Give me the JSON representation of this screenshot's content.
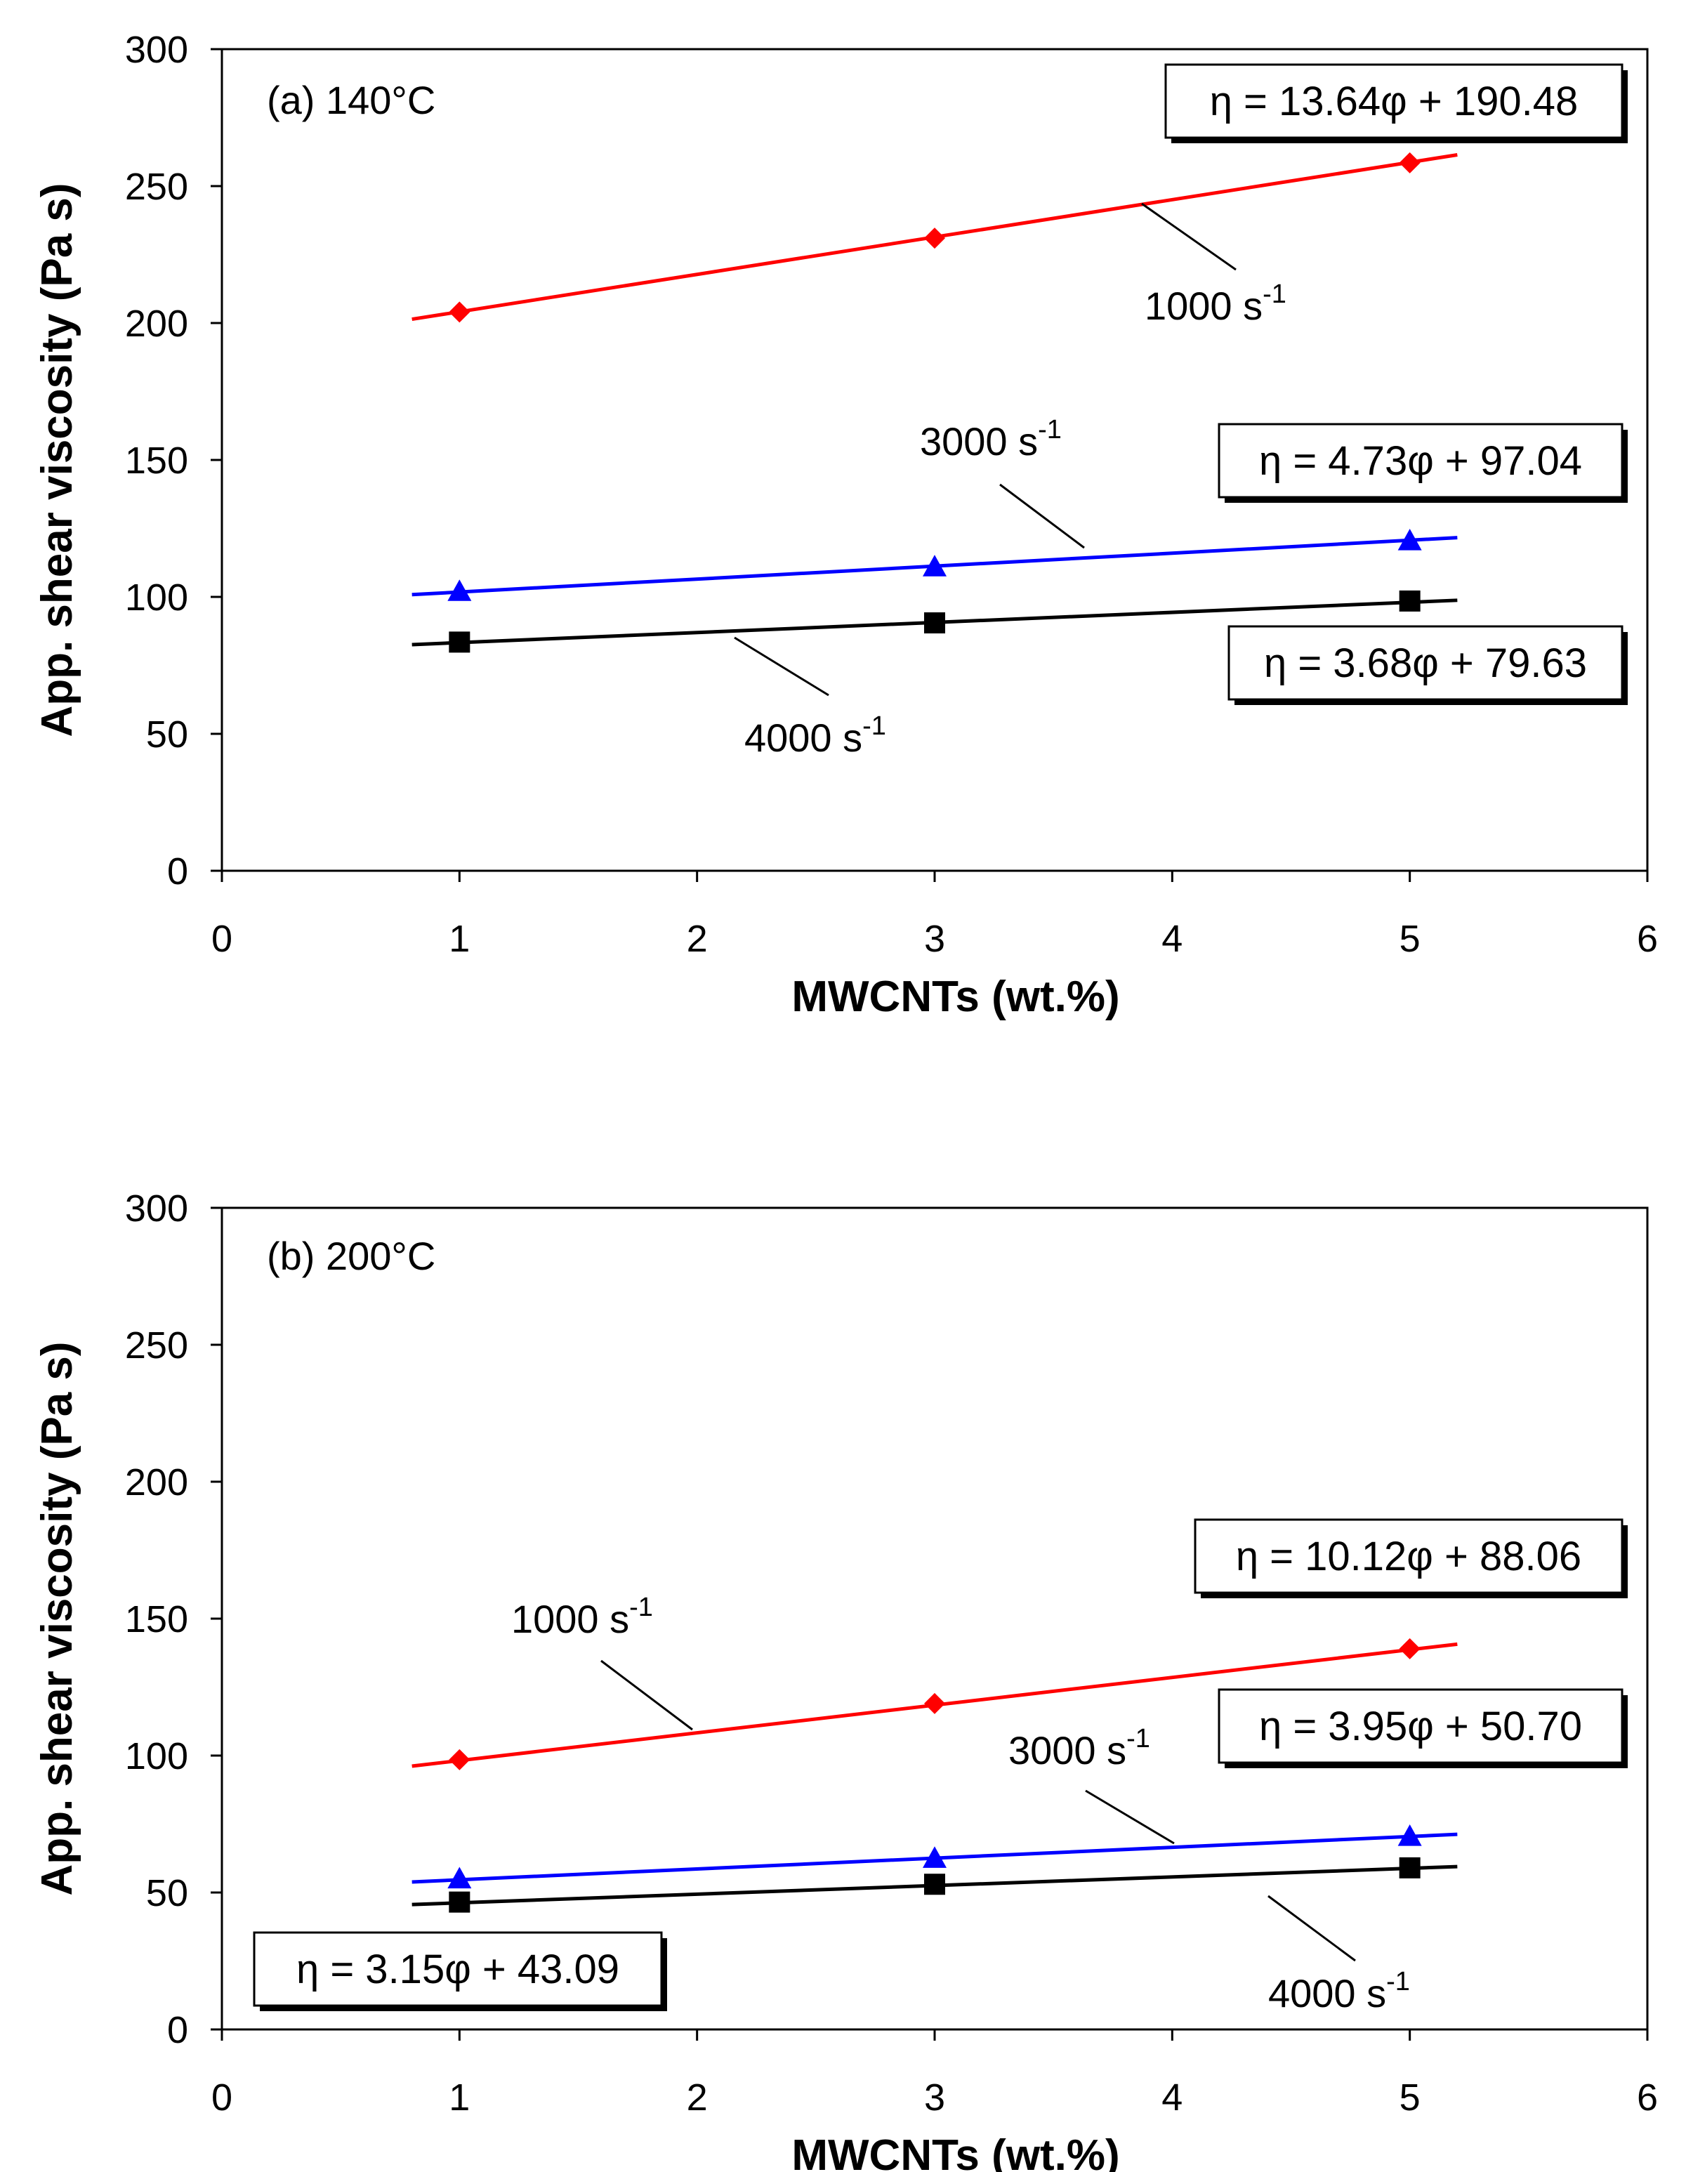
{
  "colors": {
    "rate_1000": "#ff0000",
    "rate_3000": "#0000ff",
    "rate_4000": "#000000",
    "axis": "#000000",
    "background": "#ffffff"
  },
  "chart_data": [
    {
      "type": "line",
      "annotation": "(a) 140°C",
      "xlabel": "MWCNTs (wt.%)",
      "ylabel": "App. shear viscosity (Pa s)",
      "xlim": [
        0,
        6
      ],
      "ylim": [
        0,
        300
      ],
      "xticks": [
        "0",
        "1",
        "2",
        "3",
        "4",
        "5",
        "6"
      ],
      "yticks": [
        "0",
        "50",
        "100",
        "150",
        "200",
        "250",
        "300"
      ],
      "grid": false,
      "x": [
        1,
        3,
        5
      ],
      "trend_x_range": [
        0.8,
        5.2
      ],
      "series": [
        {
          "rate_label": "1000 s",
          "rate_exp": "-1",
          "marker": "diamond",
          "color": "#ff0000",
          "values": [
            204,
            231,
            258.5
          ],
          "fit": {
            "slope": 13.64,
            "intercept": 190.48,
            "equation": "η = 13.64φ + 190.48"
          }
        },
        {
          "rate_label": "3000 s",
          "rate_exp": "-1",
          "marker": "triangle",
          "color": "#0000ff",
          "values": [
            102,
            111,
            120.5
          ],
          "fit": {
            "slope": 4.73,
            "intercept": 97.04,
            "equation": "η = 4.73φ + 97.04"
          }
        },
        {
          "rate_label": "4000 s",
          "rate_exp": "-1",
          "marker": "square",
          "color": "#000000",
          "values": [
            83.5,
            90.5,
            98.5
          ],
          "fit": {
            "slope": 3.68,
            "intercept": 79.63,
            "equation": "η = 3.68φ + 79.63"
          }
        }
      ]
    },
    {
      "type": "line",
      "annotation": "(b) 200°C",
      "xlabel": "MWCNTs (wt.%)",
      "ylabel": "App. shear viscosity (Pa s)",
      "xlim": [
        0,
        6
      ],
      "ylim": [
        0,
        300
      ],
      "xticks": [
        "0",
        "1",
        "2",
        "3",
        "4",
        "5",
        "6"
      ],
      "yticks": [
        "0",
        "50",
        "100",
        "150",
        "200",
        "250",
        "300"
      ],
      "grid": false,
      "x": [
        1,
        3,
        5
      ],
      "trend_x_range": [
        0.8,
        5.2
      ],
      "series": [
        {
          "rate_label": "1000 s",
          "rate_exp": "-1",
          "marker": "diamond",
          "color": "#ff0000",
          "values": [
            98.5,
            119,
            139
          ],
          "fit": {
            "slope": 10.12,
            "intercept": 88.06,
            "equation": "η = 10.12φ + 88.06"
          }
        },
        {
          "rate_label": "3000 s",
          "rate_exp": "-1",
          "marker": "triangle",
          "color": "#0000ff",
          "values": [
            55,
            62.5,
            70.5
          ],
          "fit": {
            "slope": 3.95,
            "intercept": 50.7,
            "equation": "η = 3.95φ + 50.70"
          }
        },
        {
          "rate_label": "4000 s",
          "rate_exp": "-1",
          "marker": "square",
          "color": "#000000",
          "values": [
            46.5,
            53,
            59
          ],
          "fit": {
            "slope": 3.15,
            "intercept": 43.09,
            "equation": "η = 3.15φ + 43.09"
          }
        }
      ]
    }
  ]
}
